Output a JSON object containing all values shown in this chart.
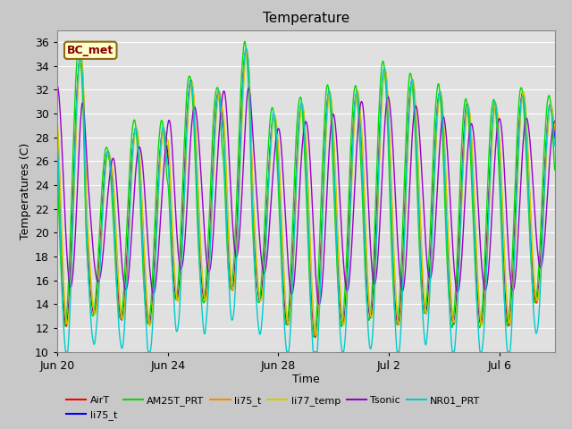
{
  "title": "Temperature",
  "xlabel": "Time",
  "ylabel": "Temperatures (C)",
  "ylim": [
    10,
    37
  ],
  "yticks": [
    10,
    12,
    14,
    16,
    18,
    20,
    22,
    24,
    26,
    28,
    30,
    32,
    34,
    36
  ],
  "fig_bg_color": "#c8c8c8",
  "plot_bg_color": "#e0e0e0",
  "annotation_text": "BC_met",
  "annotation_color": "#8B0000",
  "annotation_bg": "#ffffcc",
  "annotation_border": "#8B6914",
  "series": [
    {
      "label": "AirT",
      "color": "#ff0000",
      "lw": 1.0
    },
    {
      "label": "li75_t",
      "color": "#0000ff",
      "lw": 1.0
    },
    {
      "label": "AM25T_PRT",
      "color": "#00dd00",
      "lw": 1.0
    },
    {
      "label": "li75_t",
      "color": "#ff8800",
      "lw": 1.0
    },
    {
      "label": "li77_temp",
      "color": "#cccc00",
      "lw": 1.0
    },
    {
      "label": "Tsonic",
      "color": "#9900cc",
      "lw": 1.0
    },
    {
      "label": "NR01_PRT",
      "color": "#00cccc",
      "lw": 1.0
    }
  ],
  "xtick_positions": [
    0,
    4,
    8,
    12,
    16
  ],
  "xtick_labels": [
    "Jun 20",
    "Jun 24",
    "Jun 28",
    "Jul 2",
    "Jul 6"
  ],
  "xlim": [
    0,
    18
  ],
  "num_points": 1800,
  "grid_color": "#ffffff",
  "title_fontsize": 11,
  "axis_fontsize": 9,
  "legend_fontsize": 8
}
